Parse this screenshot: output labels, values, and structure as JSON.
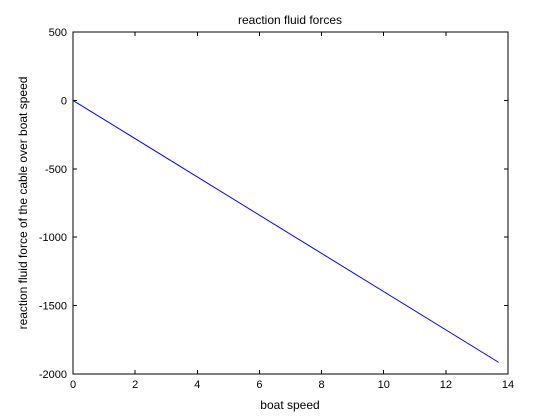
{
  "chart_data": {
    "type": "line",
    "title": "reaction fluid forces",
    "xlabel": "boat speed",
    "ylabel": "reaction fluid force of the cable over boat speed",
    "xlim": [
      0,
      14
    ],
    "ylim": [
      -2000,
      500
    ],
    "xticks": [
      0,
      2,
      4,
      6,
      8,
      10,
      12,
      14
    ],
    "yticks": [
      500,
      0,
      -500,
      -1000,
      -1500,
      -2000
    ],
    "grid": false,
    "legend": "none",
    "series": [
      {
        "color": "#0000ff",
        "x": [
          0,
          13.7
        ],
        "y": [
          0,
          -1915
        ]
      }
    ]
  }
}
